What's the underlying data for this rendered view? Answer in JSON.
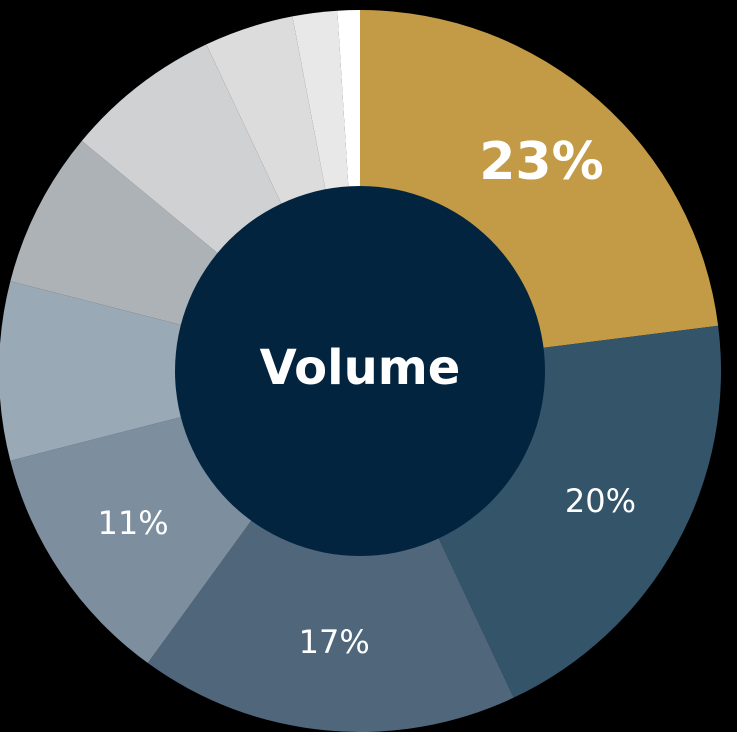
{
  "chart_data": {
    "type": "pie",
    "center_label": "Volume",
    "values": [
      23,
      20,
      17,
      11,
      8,
      7,
      7,
      4,
      2,
      1
    ],
    "value_labels": [
      "23%",
      "20%",
      "17%",
      "11%",
      null,
      null,
      null,
      null,
      null,
      null
    ],
    "colors": [
      "#c39a45",
      "#34546a",
      "#4f667b",
      "#7d8e9e",
      "#9aa9b6",
      "#adb2b6",
      "#d0d1d2",
      "#dcdcdc",
      "#e8e8e8",
      "#ffffff"
    ],
    "center_color": "#02243f"
  }
}
